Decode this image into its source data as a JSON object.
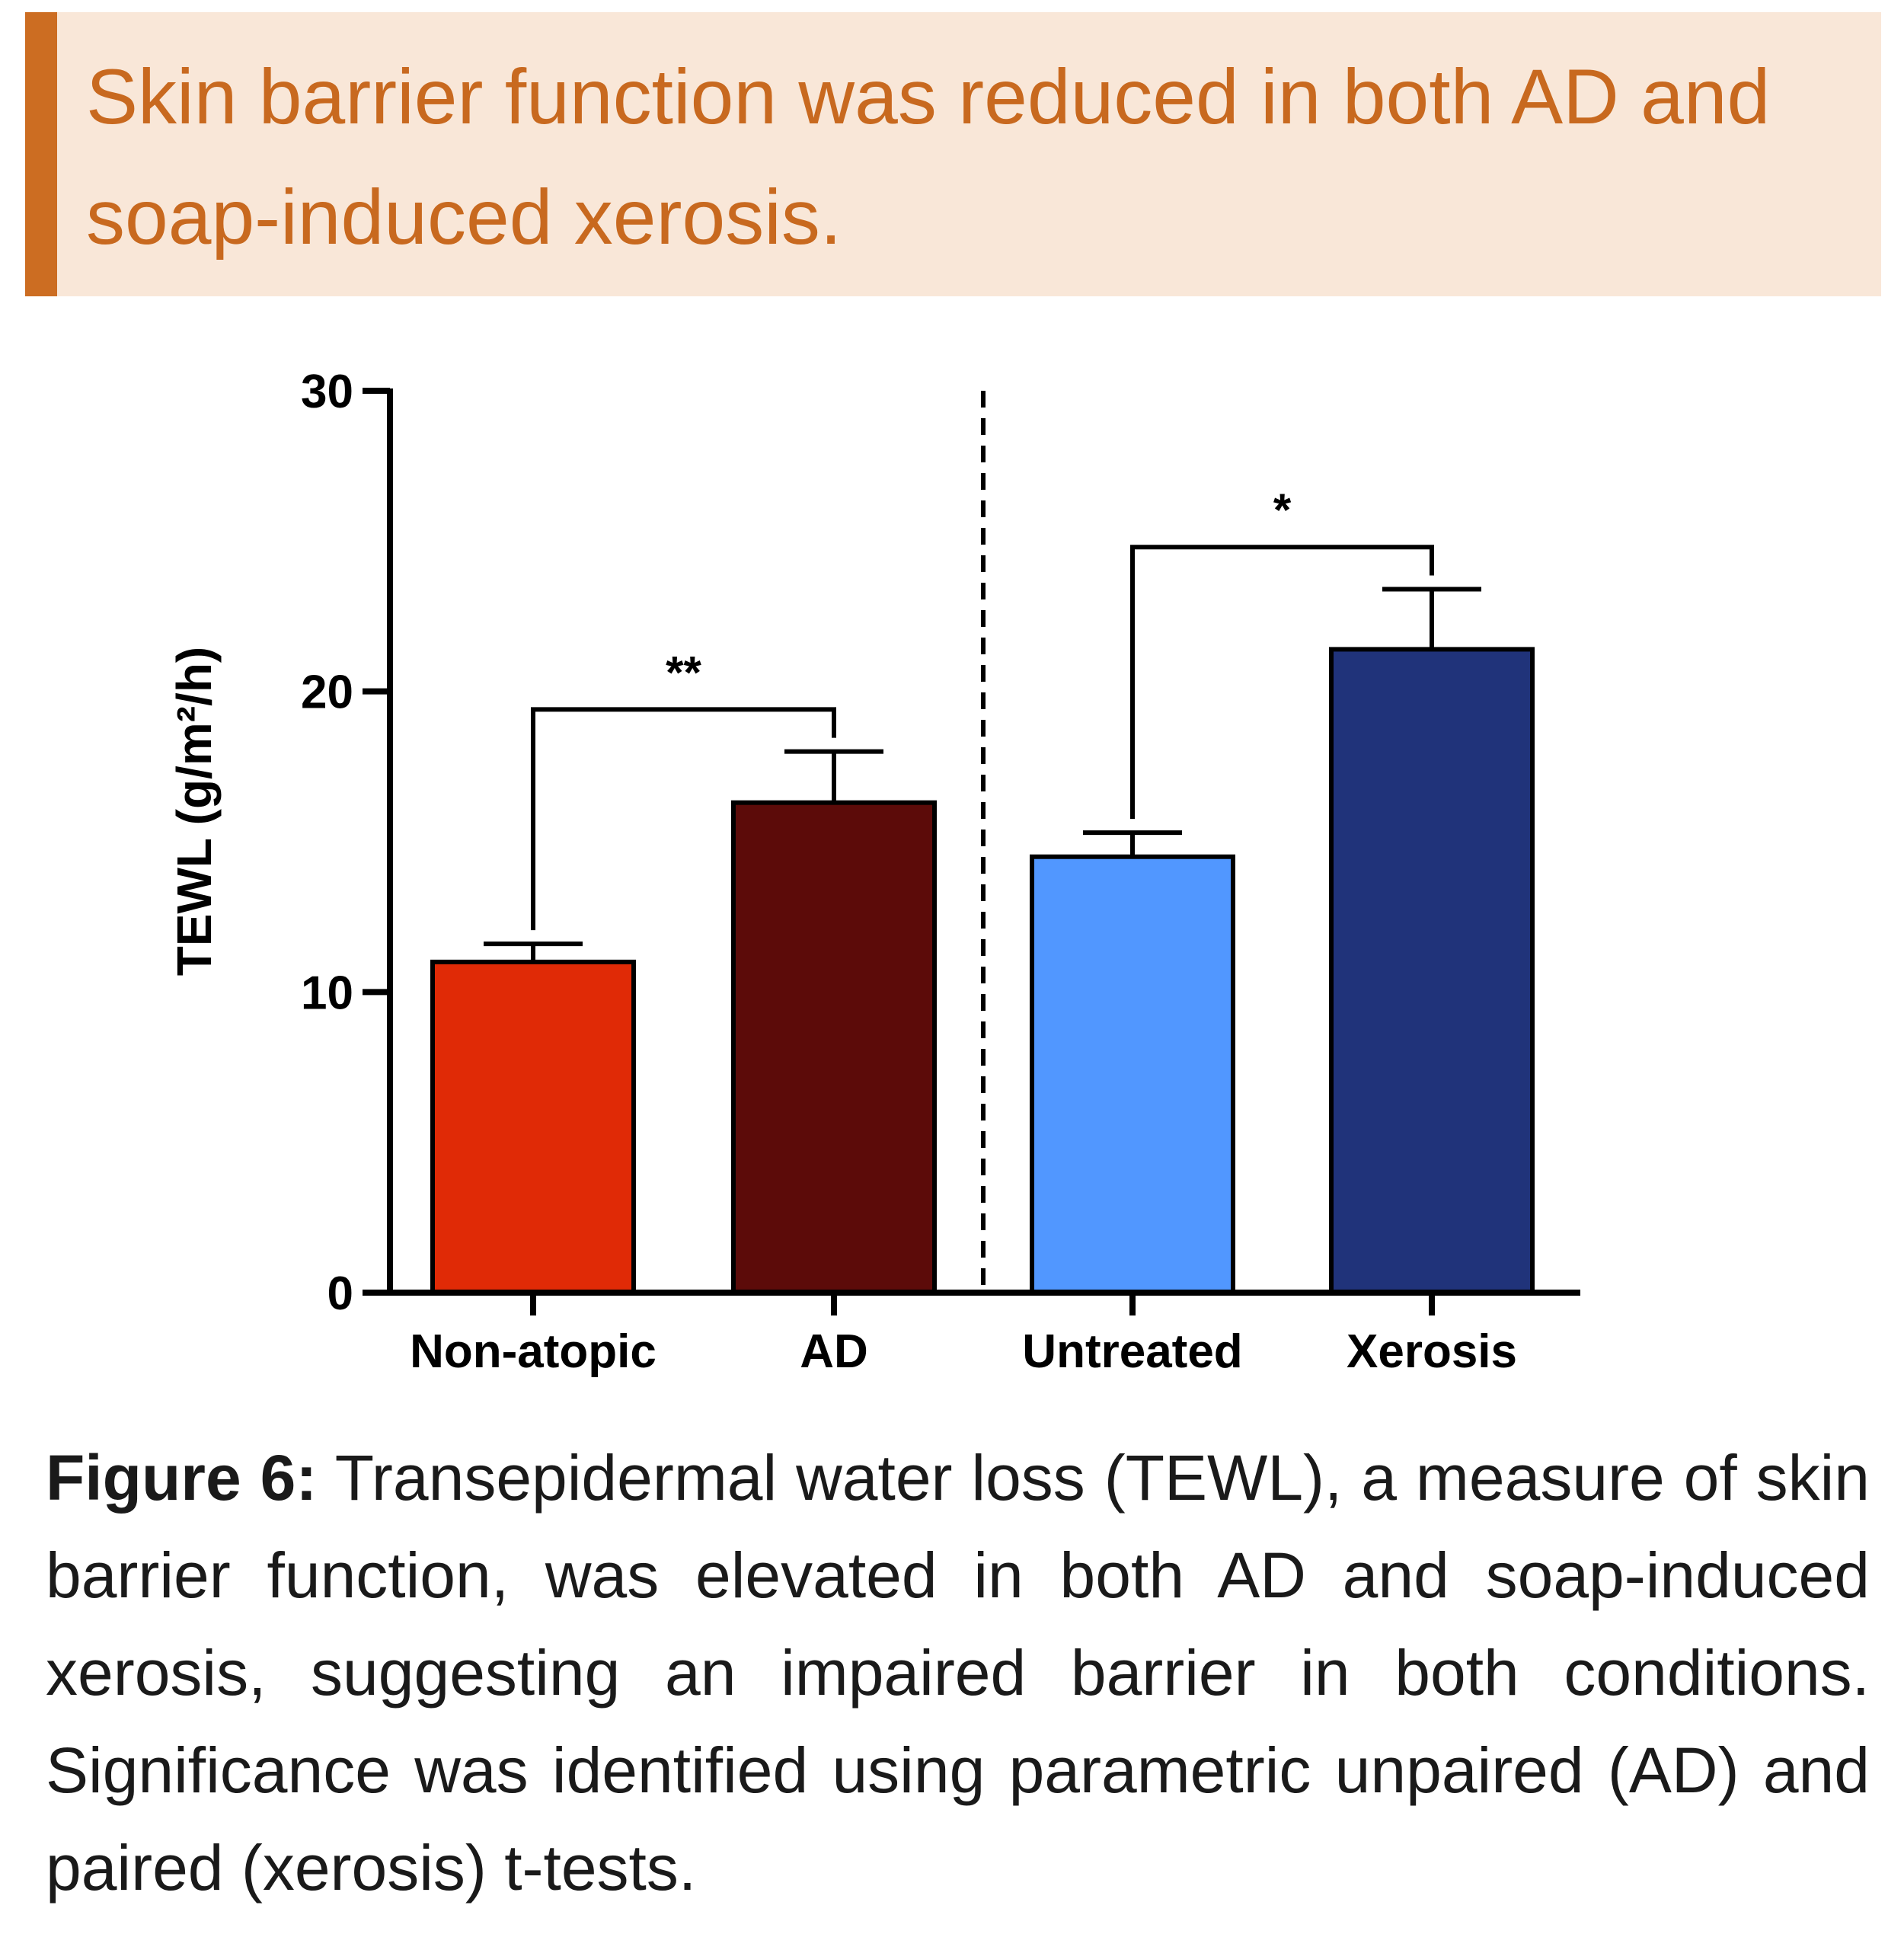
{
  "header": {
    "title": "Skin barrier function was reduced in both AD and soap-induced xerosis."
  },
  "chart_data": {
    "type": "bar",
    "categories": [
      "Non-atopic",
      "AD",
      "Untreated",
      "Xerosis"
    ],
    "values": [
      11.0,
      16.3,
      14.5,
      21.4
    ],
    "errors": [
      0.6,
      1.7,
      0.8,
      2.0
    ],
    "colors": [
      "#e02a06",
      "#5c0b09",
      "#5197ff",
      "#20337a"
    ],
    "ylabel": "TEWL (g/m²/h)",
    "ylim": [
      0,
      30
    ],
    "yticks": [
      0,
      10,
      20,
      30
    ],
    "grid": false,
    "group_separator_after_index": 1,
    "significance": [
      {
        "from": 0,
        "to": 1,
        "label": "**",
        "y": 19.4
      },
      {
        "from": 2,
        "to": 3,
        "label": "*",
        "y": 24.8
      }
    ]
  },
  "caption": {
    "label": "Figure 6:",
    "text": "Transepidermal water loss (TEWL), a measure of skin barrier function, was elevated in both AD and soap-induced xerosis, suggesting an impaired barrier in both conditions. Significance was identified using parametric unpaired (AD) and paired (xerosis) t-tests."
  }
}
